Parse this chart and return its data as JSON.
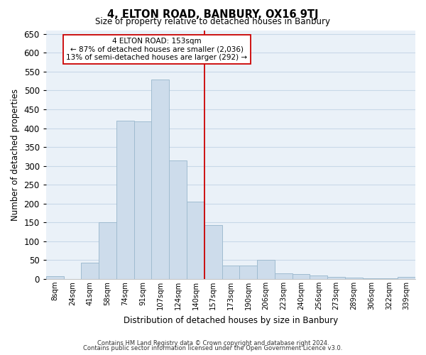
{
  "title": "4, ELTON ROAD, BANBURY, OX16 9TJ",
  "subtitle": "Size of property relative to detached houses in Banbury",
  "xlabel": "Distribution of detached houses by size in Banbury",
  "ylabel": "Number of detached properties",
  "bar_labels": [
    "8sqm",
    "24sqm",
    "41sqm",
    "58sqm",
    "74sqm",
    "91sqm",
    "107sqm",
    "124sqm",
    "140sqm",
    "157sqm",
    "173sqm",
    "190sqm",
    "206sqm",
    "223sqm",
    "240sqm",
    "256sqm",
    "273sqm",
    "289sqm",
    "306sqm",
    "322sqm",
    "339sqm"
  ],
  "bar_values": [
    8,
    0,
    44,
    150,
    420,
    418,
    530,
    315,
    205,
    143,
    35,
    35,
    50,
    16,
    13,
    10,
    5,
    3,
    2,
    2,
    5
  ],
  "bar_color": "#cddceb",
  "bar_edge_color": "#a0bcd0",
  "grid_color": "#c8d8e8",
  "vline_color": "#cc0000",
  "annotation_title": "4 ELTON ROAD: 153sqm",
  "annotation_line1": "← 87% of detached houses are smaller (2,036)",
  "annotation_line2": "13% of semi-detached houses are larger (292) →",
  "annotation_box_color": "#ffffff",
  "annotation_box_edge": "#cc0000",
  "footnote1": "Contains HM Land Registry data © Crown copyright and database right 2024.",
  "footnote2": "Contains public sector information licensed under the Open Government Licence v3.0.",
  "ylim": [
    0,
    660
  ],
  "yticks": [
    0,
    50,
    100,
    150,
    200,
    250,
    300,
    350,
    400,
    450,
    500,
    550,
    600,
    650
  ],
  "bg_color": "#eaf1f8",
  "fig_bg": "#ffffff"
}
